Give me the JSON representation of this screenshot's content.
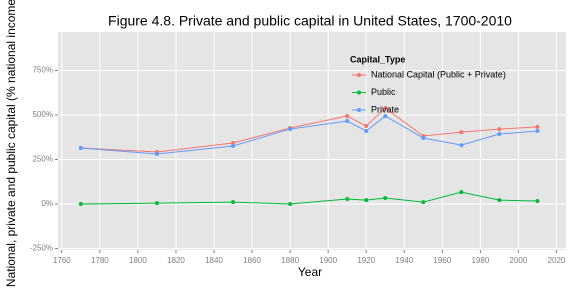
{
  "chart_data": {
    "type": "line",
    "title": "Figure 4.8. Private and public capital in United States, 1700-2010",
    "x_label": "Year",
    "y_label": "National, private and public capital (% national income)",
    "legend_title": "Capital_Type",
    "x": [
      1770,
      1810,
      1850,
      1880,
      1910,
      1920,
      1930,
      1950,
      1970,
      1990,
      2010
    ],
    "series": [
      {
        "name": "National Capital (Public + Private)",
        "color": "#F8766D",
        "values": [
          315,
          292,
          343,
          427,
          494,
          438,
          539,
          382,
          404,
          421,
          433
        ]
      },
      {
        "name": "Public",
        "color": "#00BA38",
        "values": [
          0,
          5,
          11,
          0,
          28,
          22,
          34,
          11,
          67,
          22,
          17
        ]
      },
      {
        "name": "Private",
        "color": "#619CFF",
        "values": [
          315,
          281,
          326,
          421,
          466,
          410,
          494,
          371,
          331,
          393,
          410
        ]
      }
    ],
    "xlim": [
      1758,
      2025
    ],
    "xticks": [
      1760,
      1780,
      1800,
      1820,
      1840,
      1860,
      1880,
      1900,
      1920,
      1940,
      1960,
      1980,
      2000,
      2020
    ],
    "ylim": [
      -258,
      966
    ],
    "yticks": [
      {
        "value": -250,
        "label": "-250%"
      },
      {
        "value": 0,
        "label": "0%"
      },
      {
        "value": 250,
        "label": "250%"
      },
      {
        "value": 500,
        "label": "500%"
      },
      {
        "value": 750,
        "label": "750%"
      }
    ],
    "grid": true,
    "legend_position": "top-right"
  }
}
